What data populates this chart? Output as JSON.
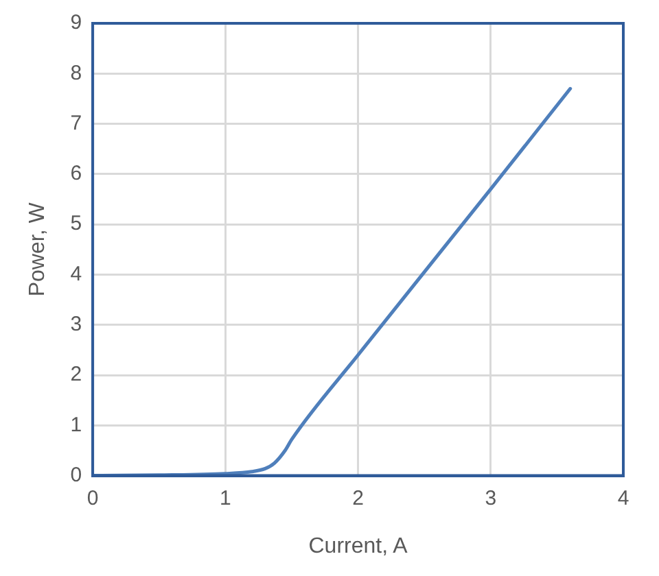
{
  "chart_data": {
    "type": "line",
    "xlabel": "Current, A",
    "ylabel": "Power, W",
    "x": [
      0,
      0.5,
      1,
      1.2,
      1.3,
      1.37,
      1.45,
      1.5,
      2,
      3,
      3.6
    ],
    "series": [
      {
        "color": "#4f7fbb",
        "values": [
          0,
          0.01,
          0.04,
          0.08,
          0.14,
          0.25,
          0.5,
          0.72,
          2.4,
          5.7,
          7.7
        ]
      }
    ],
    "xlim": [
      0,
      4
    ],
    "xticks": [
      0,
      1,
      2,
      3,
      4
    ],
    "ylim": [
      0,
      9
    ],
    "yticks": [
      0,
      1,
      2,
      3,
      4,
      5,
      6,
      7,
      8,
      9
    ],
    "grid": true,
    "legend": false,
    "marker": "none",
    "line_style": "solid"
  }
}
